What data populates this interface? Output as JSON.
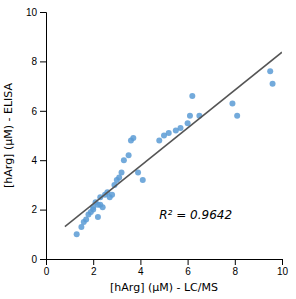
{
  "chart_data": {
    "type": "scatter",
    "xlabel": "[hArg] (μM) - LC/MS",
    "ylabel": "[hArg] (μM) - ELISA",
    "xlim": [
      0,
      10
    ],
    "ylim": [
      0,
      10
    ],
    "xticks": [
      0,
      2,
      4,
      6,
      8,
      10
    ],
    "yticks": [
      0,
      2,
      4,
      6,
      8,
      10
    ],
    "series": [
      {
        "type": "scatter",
        "color": "#5b9bd5",
        "x": [
          1.3,
          1.5,
          1.6,
          1.7,
          1.8,
          1.9,
          2.0,
          2.0,
          2.1,
          2.2,
          2.2,
          2.3,
          2.3,
          2.4,
          2.5,
          2.6,
          2.7,
          2.8,
          2.9,
          3.0,
          3.1,
          3.2,
          3.3,
          3.5,
          3.6,
          3.7,
          3.9,
          4.1,
          4.8,
          5.0,
          5.2,
          5.5,
          5.7,
          6.0,
          6.1,
          6.2,
          6.5,
          7.9,
          8.1,
          9.5,
          9.6
        ],
        "values": [
          1.0,
          1.3,
          1.5,
          1.6,
          1.8,
          1.9,
          2.0,
          2.1,
          2.3,
          2.2,
          1.7,
          2.5,
          2.2,
          2.1,
          2.6,
          2.7,
          2.5,
          2.6,
          3.0,
          3.2,
          3.3,
          3.5,
          4.0,
          4.2,
          4.8,
          4.9,
          3.5,
          3.2,
          4.8,
          5.0,
          5.1,
          5.2,
          5.3,
          5.5,
          5.8,
          6.6,
          5.8,
          6.3,
          5.8,
          7.6,
          7.1
        ]
      },
      {
        "type": "line",
        "color": "#555555",
        "x": [
          0.8,
          10.0
        ],
        "values": [
          1.3119,
          8.3722
        ]
      }
    ],
    "annotations": [
      {
        "text": "R² = 0.9642",
        "x": 4.8,
        "y": 1.6
      }
    ]
  }
}
